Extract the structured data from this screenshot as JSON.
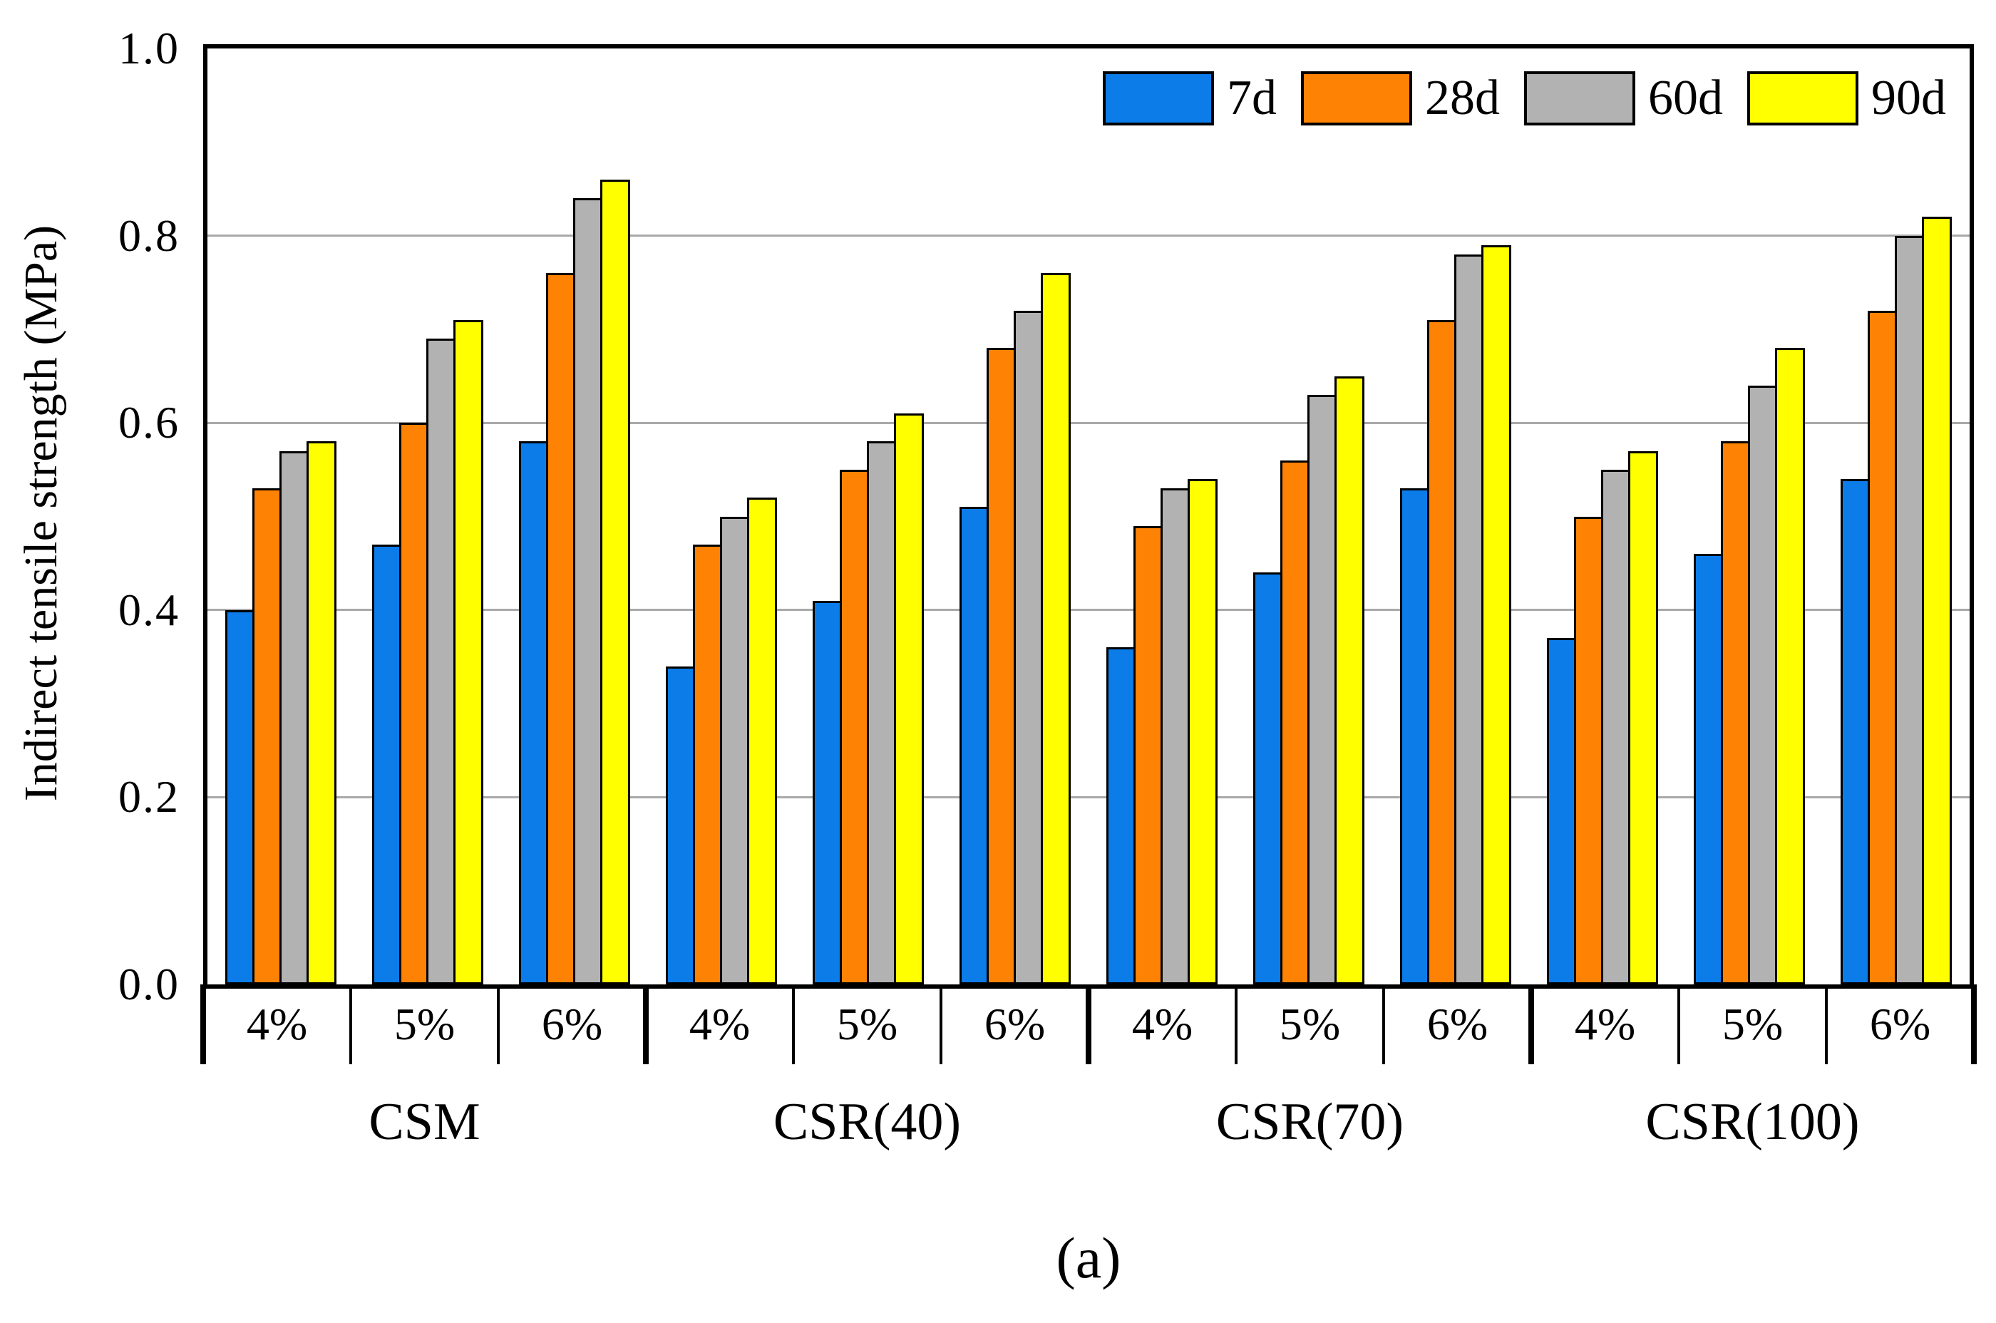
{
  "figure": {
    "caption": "(a)"
  },
  "chart_data": {
    "type": "bar",
    "title": "",
    "ylabel": "Indirect tensile strength (MPa)",
    "ylim": [
      0,
      1.0
    ],
    "yticks": [
      "0.0",
      "0.2",
      "0.4",
      "0.6",
      "0.8",
      "1.0"
    ],
    "gridline_values": [
      0.2,
      0.4,
      0.6,
      0.8
    ],
    "grid": true,
    "legend_position": "inside plot, top-right, horizontal row",
    "group_labels": [
      "CSM",
      "CSR(40)",
      "CSR(70)",
      "CSR(100)"
    ],
    "subgroup_labels": [
      "4%",
      "5%",
      "6%"
    ],
    "series": [
      {
        "name": "7d",
        "color": "#0c7ce9",
        "values": [
          [
            0.4,
            0.47,
            0.58
          ],
          [
            0.34,
            0.41,
            0.51
          ],
          [
            0.36,
            0.44,
            0.53
          ],
          [
            0.37,
            0.46,
            0.54
          ]
        ]
      },
      {
        "name": "28d",
        "color": "#fe8204",
        "values": [
          [
            0.53,
            0.6,
            0.76
          ],
          [
            0.47,
            0.55,
            0.68
          ],
          [
            0.49,
            0.56,
            0.71
          ],
          [
            0.5,
            0.58,
            0.72
          ]
        ]
      },
      {
        "name": "60d",
        "color": "#b2b2b2",
        "values": [
          [
            0.57,
            0.69,
            0.84
          ],
          [
            0.5,
            0.58,
            0.72
          ],
          [
            0.53,
            0.63,
            0.78
          ],
          [
            0.55,
            0.64,
            0.8
          ]
        ]
      },
      {
        "name": "90d",
        "color": "#ffff00",
        "values": [
          [
            0.58,
            0.71,
            0.86
          ],
          [
            0.52,
            0.61,
            0.76
          ],
          [
            0.54,
            0.65,
            0.79
          ],
          [
            0.57,
            0.68,
            0.82
          ]
        ]
      }
    ]
  }
}
